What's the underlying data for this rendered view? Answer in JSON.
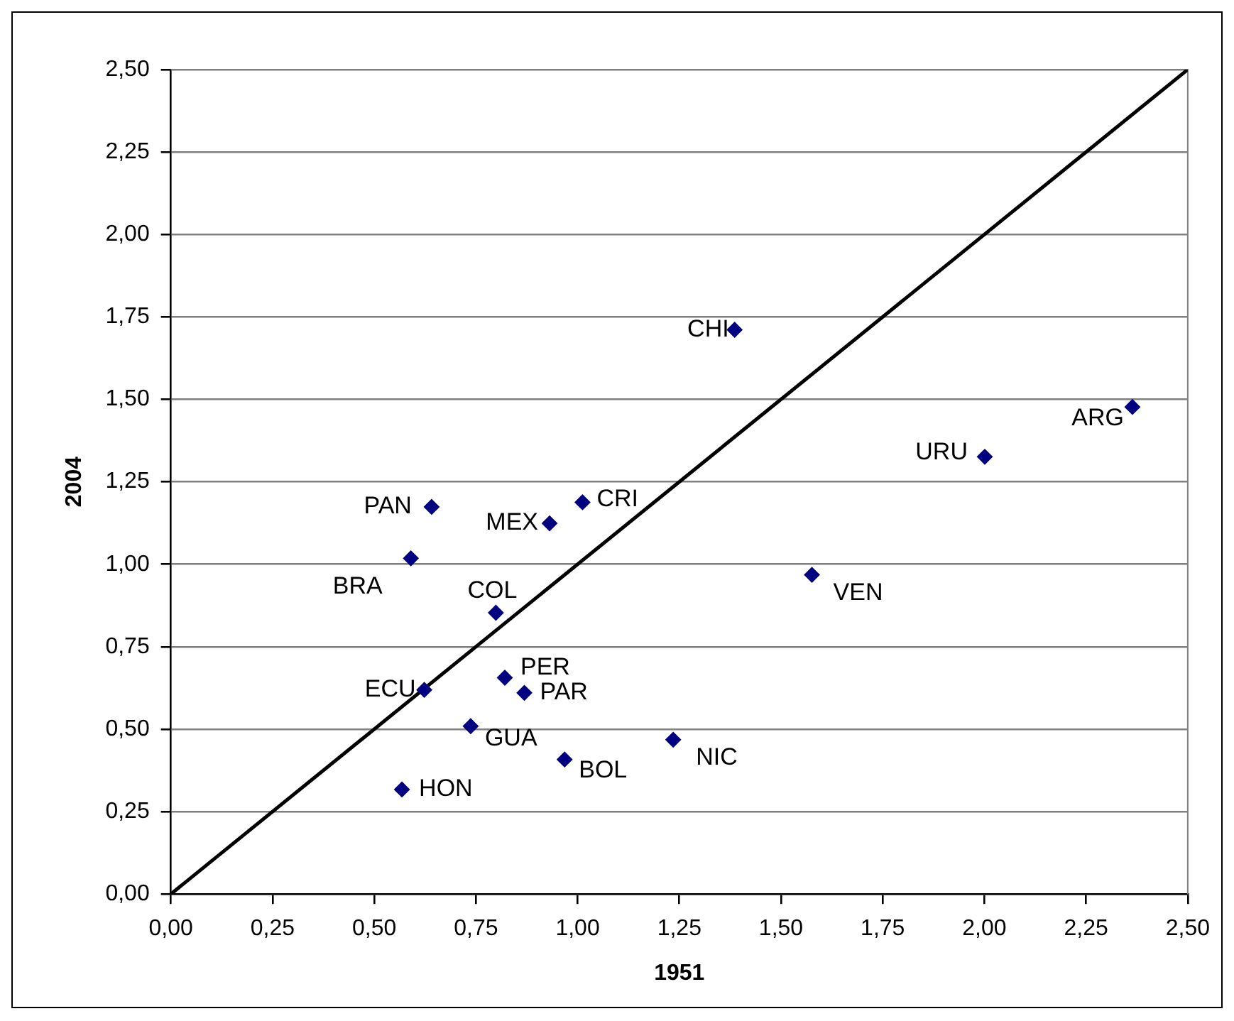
{
  "chart_data": {
    "type": "scatter",
    "xlabel": "1951",
    "ylabel": "2004",
    "series": [
      {
        "color": "#000080",
        "marker": "diamond",
        "x": [
          1.386,
          2.364,
          2.001,
          0.641,
          1.012,
          0.931,
          0.59,
          1.576,
          0.799,
          0.821,
          0.869,
          0.623,
          0.737,
          1.235,
          0.968,
          0.568
        ],
        "values": [
          1.711,
          1.477,
          1.326,
          1.174,
          1.188,
          1.124,
          1.018,
          0.968,
          0.853,
          0.656,
          0.61,
          0.619,
          0.509,
          0.468,
          0.408,
          0.317
        ],
        "value_labels": [
          "CHI",
          "ARG",
          "URU",
          "PAN",
          "CRI",
          "MEX",
          "BRA",
          "VEN",
          "COL",
          "PER",
          "PAR",
          "ECU",
          "GUA",
          "NIC",
          "BOL",
          "HON"
        ]
      },
      {
        "type": "line",
        "color": "#000000",
        "marker": "none",
        "x": [
          0,
          2.5
        ],
        "values": [
          0,
          2.5
        ]
      }
    ],
    "xlim": [
      0,
      2.5
    ],
    "ylim": [
      0,
      2.5
    ],
    "xticks": [
      {
        "value": 0,
        "label": "0,00"
      },
      {
        "value": 0.25,
        "label": "0,25"
      },
      {
        "value": 0.5,
        "label": "0,50"
      },
      {
        "value": 0.75,
        "label": "0,75"
      },
      {
        "value": 1,
        "label": "1,00"
      },
      {
        "value": 1.25,
        "label": "1,25"
      },
      {
        "value": 1.5,
        "label": "1,50"
      },
      {
        "value": 1.75,
        "label": "1,75"
      },
      {
        "value": 2,
        "label": "2,00"
      },
      {
        "value": 2.25,
        "label": "2,25"
      },
      {
        "value": 2.5,
        "label": "2,50"
      }
    ],
    "yticks": [
      {
        "value": 0,
        "label": "0,00"
      },
      {
        "value": 0.25,
        "label": "0,25"
      },
      {
        "value": 0.5,
        "label": "0,50"
      },
      {
        "value": 0.75,
        "label": "0,75"
      },
      {
        "value": 1,
        "label": "1,00"
      },
      {
        "value": 1.25,
        "label": "1,25"
      },
      {
        "value": 1.5,
        "label": "1,50"
      },
      {
        "value": 1.75,
        "label": "1,75"
      },
      {
        "value": 2,
        "label": "2,00"
      },
      {
        "value": 2.25,
        "label": "2,25"
      },
      {
        "value": 2.5,
        "label": "2,50"
      }
    ],
    "grid": "y",
    "legend": false
  }
}
